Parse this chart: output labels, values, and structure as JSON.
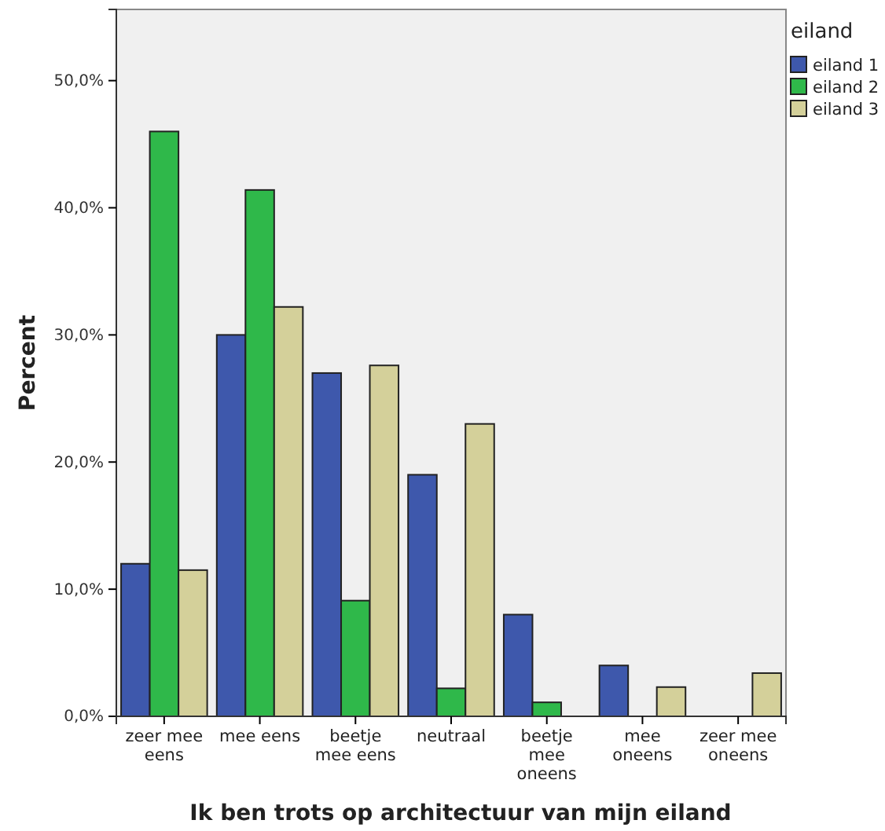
{
  "chart_data": {
    "type": "bar",
    "xlabel": "Ik ben trots op architectuur van mijn eiland",
    "ylabel": "Percent",
    "legend_title": "eiland",
    "legend": "top right",
    "categories": [
      "zeer mee eens",
      "mee eens",
      "beetje mee eens",
      "neutraal",
      "beetje mee oneens",
      "mee oneens",
      "zeer mee oneens"
    ],
    "series": [
      {
        "name": "eiland 1",
        "color": "#3e58ac",
        "values": [
          12,
          30,
          27,
          19,
          8,
          4,
          null
        ]
      },
      {
        "name": "eiland 2",
        "color": "#2fb84a",
        "values": [
          46,
          41.4,
          9.1,
          2.2,
          1.1,
          null,
          null
        ]
      },
      {
        "name": "eiland 3",
        "color": "#d4d09a",
        "values": [
          11.5,
          32.2,
          27.6,
          23,
          null,
          2.3,
          3.4
        ]
      }
    ],
    "ylim": [
      0,
      55.6
    ],
    "yticks": [
      {
        "value": 0,
        "label": "0,0%"
      },
      {
        "value": 10,
        "label": "10,0%"
      },
      {
        "value": 20,
        "label": "20,0%"
      },
      {
        "value": 30,
        "label": "30,0%"
      },
      {
        "value": 40,
        "label": "40,0%"
      },
      {
        "value": 50,
        "label": "50,0%"
      }
    ],
    "grid": false
  }
}
